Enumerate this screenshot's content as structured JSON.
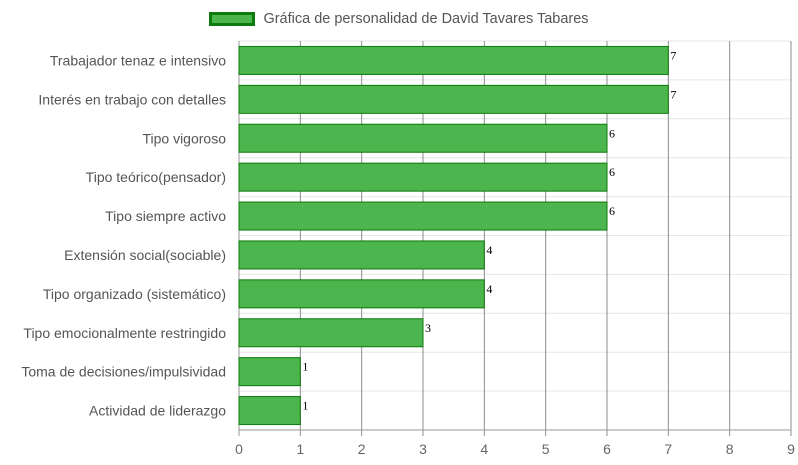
{
  "chart_data": {
    "type": "bar",
    "orientation": "horizontal",
    "legend": {
      "label": "Gráfica de personalidad de David Tavares Tabares",
      "position": "top"
    },
    "categories": [
      "Trabajador tenaz e intensivo",
      "Interés en trabajo con detalles",
      "Tipo vigoroso",
      "Tipo teórico(pensador)",
      "Tipo siempre activo",
      "Extensión social(sociable)",
      "Tipo organizado (sistemático)",
      "Tipo emocionalmente restringido",
      "Toma de decisiones/impulsividad",
      "Actividad de liderazgo"
    ],
    "series": [
      {
        "name": "Gráfica de personalidad de David Tavares Tabares",
        "values": [
          7,
          7,
          6,
          6,
          6,
          4,
          4,
          3,
          1,
          1
        ]
      }
    ],
    "xlim": [
      0,
      9
    ],
    "xticks": [
      "0",
      "1",
      "2",
      "3",
      "4",
      "5",
      "6",
      "7",
      "8",
      "9"
    ],
    "grid": true,
    "colors": {
      "bar_fill": "#4db54d",
      "bar_border": "#0c7a0c"
    }
  }
}
